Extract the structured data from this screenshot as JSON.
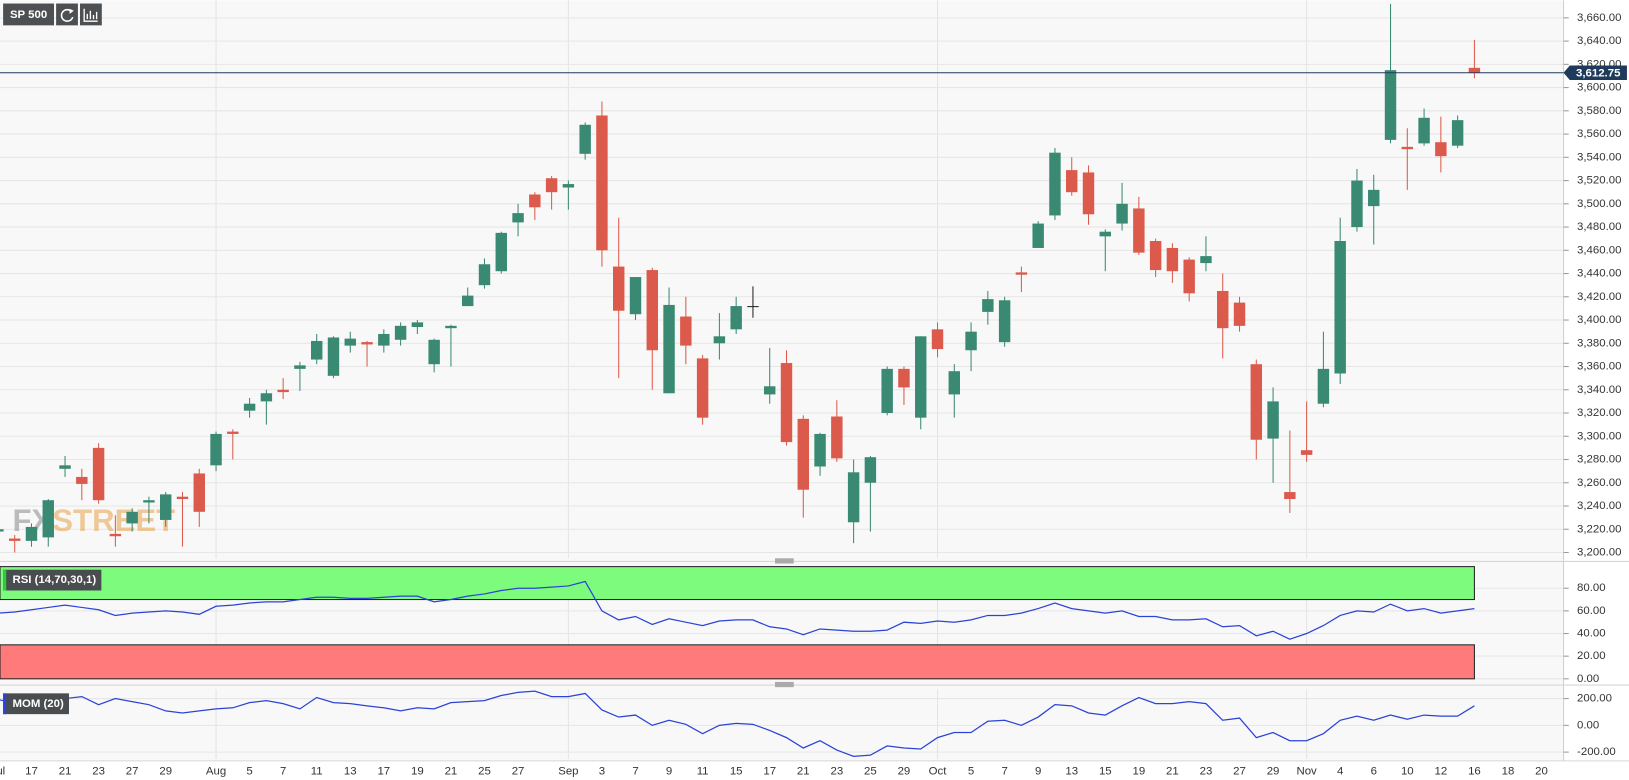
{
  "toolbar": {
    "symbol": "SP 500"
  },
  "watermark": {
    "left": "FX",
    "right": "STREET"
  },
  "chart_data": [
    {
      "type": "candlestick",
      "title": "SP 500",
      "categories": [
        "Jul",
        null,
        "17",
        null,
        "21",
        null,
        "23",
        null,
        "27",
        null,
        "29",
        null,
        null,
        "Aug",
        null,
        "5",
        null,
        "7",
        null,
        "11",
        null,
        "13",
        null,
        "17",
        null,
        "19",
        null,
        "21",
        null,
        "25",
        null,
        "27",
        null,
        null,
        "Sep",
        null,
        "3",
        null,
        "7",
        null,
        "9",
        null,
        "11",
        null,
        "15",
        null,
        "17",
        null,
        "21",
        null,
        "23",
        null,
        "25",
        null,
        "29",
        null,
        "Oct",
        null,
        "5",
        null,
        "7",
        null,
        "9",
        null,
        "13",
        null,
        "15",
        null,
        "19",
        null,
        "21",
        null,
        "23",
        null,
        "27",
        null,
        "29",
        null,
        "Nov",
        null,
        "4",
        null,
        "6",
        null,
        "10",
        null,
        "12",
        null,
        "16",
        null,
        "18",
        null,
        "20"
      ],
      "open": [
        3218,
        3212,
        3210,
        3213,
        3272,
        3265,
        3290,
        3216,
        3225,
        3243,
        3228,
        3248,
        3268,
        3275,
        3304,
        3322,
        3330,
        3340,
        3358,
        3366,
        3352,
        3378,
        3381,
        3378,
        3383,
        3394,
        3362,
        3393,
        3412,
        3430,
        3442,
        3484,
        3508,
        3522,
        3514,
        3543,
        3576,
        3446,
        3405,
        3443,
        3337,
        3403,
        3367,
        3380,
        3392,
        3412,
        3336,
        3363,
        3315,
        3274,
        3317,
        3226,
        3260,
        3320,
        3358,
        3316,
        3392,
        3336,
        3374,
        3407,
        3381,
        3441,
        3462,
        3490,
        3529,
        3527,
        3472,
        3483,
        3496,
        3468,
        3462,
        3452,
        3449,
        3425,
        3415,
        3362,
        3298,
        3252,
        3288,
        3328,
        3354,
        3480,
        3498,
        3555,
        3549,
        3552,
        3553,
        3550,
        3617,
        null,
        null,
        null,
        null
      ],
      "high": [
        3222,
        3215,
        3225,
        3246,
        3283,
        3272,
        3294,
        3232,
        3238,
        3248,
        3252,
        3252,
        3272,
        3304,
        3306,
        3333,
        3340,
        3350,
        3364,
        3388,
        3386,
        3390,
        3382,
        3392,
        3398,
        3400,
        3384,
        3396,
        3428,
        3453,
        3476,
        3500,
        3510,
        3524,
        3520,
        3570,
        3588,
        3488,
        3437,
        3445,
        3428,
        3420,
        3370,
        3406,
        3420,
        3429,
        3376,
        3374,
        3318,
        3303,
        3331,
        3280,
        3283,
        3360,
        3360,
        3386,
        3398,
        3362,
        3398,
        3425,
        3420,
        3446,
        3485,
        3548,
        3540,
        3533,
        3478,
        3518,
        3506,
        3470,
        3466,
        3454,
        3472,
        3440,
        3420,
        3366,
        3342,
        3305,
        3330,
        3390,
        3488,
        3530,
        3525,
        3672,
        3565,
        3582,
        3575,
        3576,
        3641,
        null,
        null,
        null,
        null
      ],
      "low": [
        3215,
        3200,
        3205,
        3205,
        3265,
        3245,
        3242,
        3205,
        3218,
        3225,
        3222,
        3205,
        3222,
        3270,
        3280,
        3316,
        3310,
        3332,
        3339,
        3362,
        3350,
        3372,
        3360,
        3372,
        3378,
        3388,
        3355,
        3360,
        3412,
        3427,
        3440,
        3472,
        3486,
        3495,
        3495,
        3538,
        3446,
        3350,
        3400,
        3340,
        3337,
        3362,
        3310,
        3366,
        3388,
        3402,
        3328,
        3292,
        3230,
        3266,
        3278,
        3208,
        3218,
        3318,
        3327,
        3306,
        3368,
        3316,
        3356,
        3396,
        3377,
        3424,
        3462,
        3486,
        3507,
        3482,
        3442,
        3477,
        3456,
        3437,
        3432,
        3416,
        3442,
        3367,
        3390,
        3280,
        3260,
        3234,
        3278,
        3325,
        3345,
        3476,
        3465,
        3552,
        3512,
        3550,
        3527,
        3548,
        3608,
        null,
        null,
        null,
        null
      ],
      "close": [
        3220,
        3210,
        3222,
        3245,
        3275,
        3259,
        3245,
        3214,
        3235,
        3245,
        3250,
        3246,
        3235,
        3302,
        3302,
        3328,
        3337,
        3338,
        3361,
        3382,
        3385,
        3384,
        3379,
        3388,
        3395,
        3398,
        3383,
        3395,
        3421,
        3448,
        3475,
        3492,
        3497,
        3510,
        3517,
        3568,
        3460,
        3408,
        3437,
        3374,
        3413,
        3378,
        3316,
        3386,
        3412,
        3412,
        3343,
        3295,
        3254,
        3302,
        3281,
        3269,
        3282,
        3358,
        3342,
        3386,
        3375,
        3356,
        3390,
        3418,
        3417,
        3439,
        3483,
        3544,
        3510,
        3491,
        3476,
        3500,
        3458,
        3443,
        3442,
        3423,
        3455,
        3393,
        3395,
        3297,
        3330,
        3246,
        3284,
        3358,
        3468,
        3520,
        3512,
        3615,
        3547,
        3574,
        3541,
        3572,
        3612.75,
        null,
        null,
        null,
        null
      ],
      "up_color": "#3a8a73",
      "down_color": "#dc5a4b",
      "doji_color": "#222222",
      "last_price": {
        "value": 3612.75,
        "label": "3,612.75"
      },
      "ylim": [
        3195,
        3675
      ],
      "yticks": [
        {
          "value": 3200,
          "label": "3,200.00"
        },
        {
          "value": 3220,
          "label": "3,220.00"
        },
        {
          "value": 3240,
          "label": "3,240.00"
        },
        {
          "value": 3260,
          "label": "3,260.00"
        },
        {
          "value": 3280,
          "label": "3,280.00"
        },
        {
          "value": 3300,
          "label": "3,300.00"
        },
        {
          "value": 3320,
          "label": "3,320.00"
        },
        {
          "value": 3340,
          "label": "3,340.00"
        },
        {
          "value": 3360,
          "label": "3,360.00"
        },
        {
          "value": 3380,
          "label": "3,380.00"
        },
        {
          "value": 3400,
          "label": "3,400.00"
        },
        {
          "value": 3420,
          "label": "3,420.00"
        },
        {
          "value": 3440,
          "label": "3,440.00"
        },
        {
          "value": 3460,
          "label": "3,460.00"
        },
        {
          "value": 3480,
          "label": "3,480.00"
        },
        {
          "value": 3500,
          "label": "3,500.00"
        },
        {
          "value": 3520,
          "label": "3,520.00"
        },
        {
          "value": 3540,
          "label": "3,540.00"
        },
        {
          "value": 3560,
          "label": "3,560.00"
        },
        {
          "value": 3580,
          "label": "3,580.00"
        },
        {
          "value": 3600,
          "label": "3,600.00"
        },
        {
          "value": 3620,
          "label": "3,620.00"
        },
        {
          "value": 3640,
          "label": "3,640.00"
        },
        {
          "value": 3660,
          "label": "3,660.00"
        }
      ],
      "grid": true
    },
    {
      "type": "line",
      "title": "RSI (14,70,30,1)",
      "upper_band": 70,
      "lower_band": 30,
      "upper_color": "#7dfb7d",
      "lower_color": "#ff7b7b",
      "series": [
        {
          "name": "RSI",
          "color": "#2b43d6",
          "values": [
            58,
            59,
            61,
            63,
            65,
            63,
            61,
            56,
            58,
            59,
            60,
            59,
            57,
            64,
            65,
            67,
            68,
            68,
            70,
            72,
            72,
            71,
            71,
            72,
            73,
            73,
            68,
            70,
            73,
            75,
            78,
            80,
            80,
            81,
            82,
            86,
            60,
            52,
            55,
            48,
            53,
            50,
            47,
            51,
            52,
            52,
            46,
            44,
            39,
            44,
            43,
            42,
            42,
            43,
            50,
            49,
            51,
            50,
            52,
            56,
            56,
            58,
            62,
            67,
            62,
            60,
            58,
            60,
            55,
            55,
            52,
            52,
            53,
            46,
            47,
            38,
            42,
            35,
            40,
            47,
            56,
            60,
            59,
            66,
            60,
            62,
            58,
            60,
            62,
            null,
            null,
            null,
            null
          ]
        }
      ],
      "ylim": [
        0,
        100
      ],
      "yticks": [
        {
          "value": 0,
          "label": "0.00"
        },
        {
          "value": 20,
          "label": "20.00"
        },
        {
          "value": 40,
          "label": "40.00"
        },
        {
          "value": 60,
          "label": "60.00"
        },
        {
          "value": 80,
          "label": "80.00"
        }
      ]
    },
    {
      "type": "line",
      "title": "MOM (20)",
      "series": [
        {
          "name": "MOM",
          "color": "#2b43d6",
          "values": [
            192,
            170,
            138,
            170,
            200,
            215,
            154,
            200,
            177,
            154,
            108,
            92,
            108,
            123,
            131,
            170,
            185,
            162,
            123,
            208,
            170,
            162,
            146,
            131,
            108,
            131,
            123,
            170,
            177,
            185,
            223,
            246,
            255,
            215,
            215,
            238,
            115,
            62,
            77,
            0,
            38,
            8,
            -62,
            0,
            15,
            8,
            -38,
            -92,
            -169,
            -115,
            -185,
            -231,
            -223,
            -154,
            -169,
            -177,
            -92,
            -54,
            -54,
            31,
            38,
            0,
            62,
            154,
            146,
            92,
            77,
            146,
            208,
            162,
            162,
            177,
            162,
            38,
            54,
            -92,
            -54,
            -115,
            -115,
            -62,
            38,
            69,
            38,
            77,
            46,
            77,
            69,
            69,
            146,
            null,
            null,
            null,
            null
          ]
        }
      ],
      "ylim": [
        -250,
        270
      ],
      "yticks": [
        {
          "value": -200,
          "label": "-200.00"
        },
        {
          "value": 0,
          "label": "0.00"
        },
        {
          "value": 200,
          "label": "200.00"
        }
      ]
    }
  ]
}
